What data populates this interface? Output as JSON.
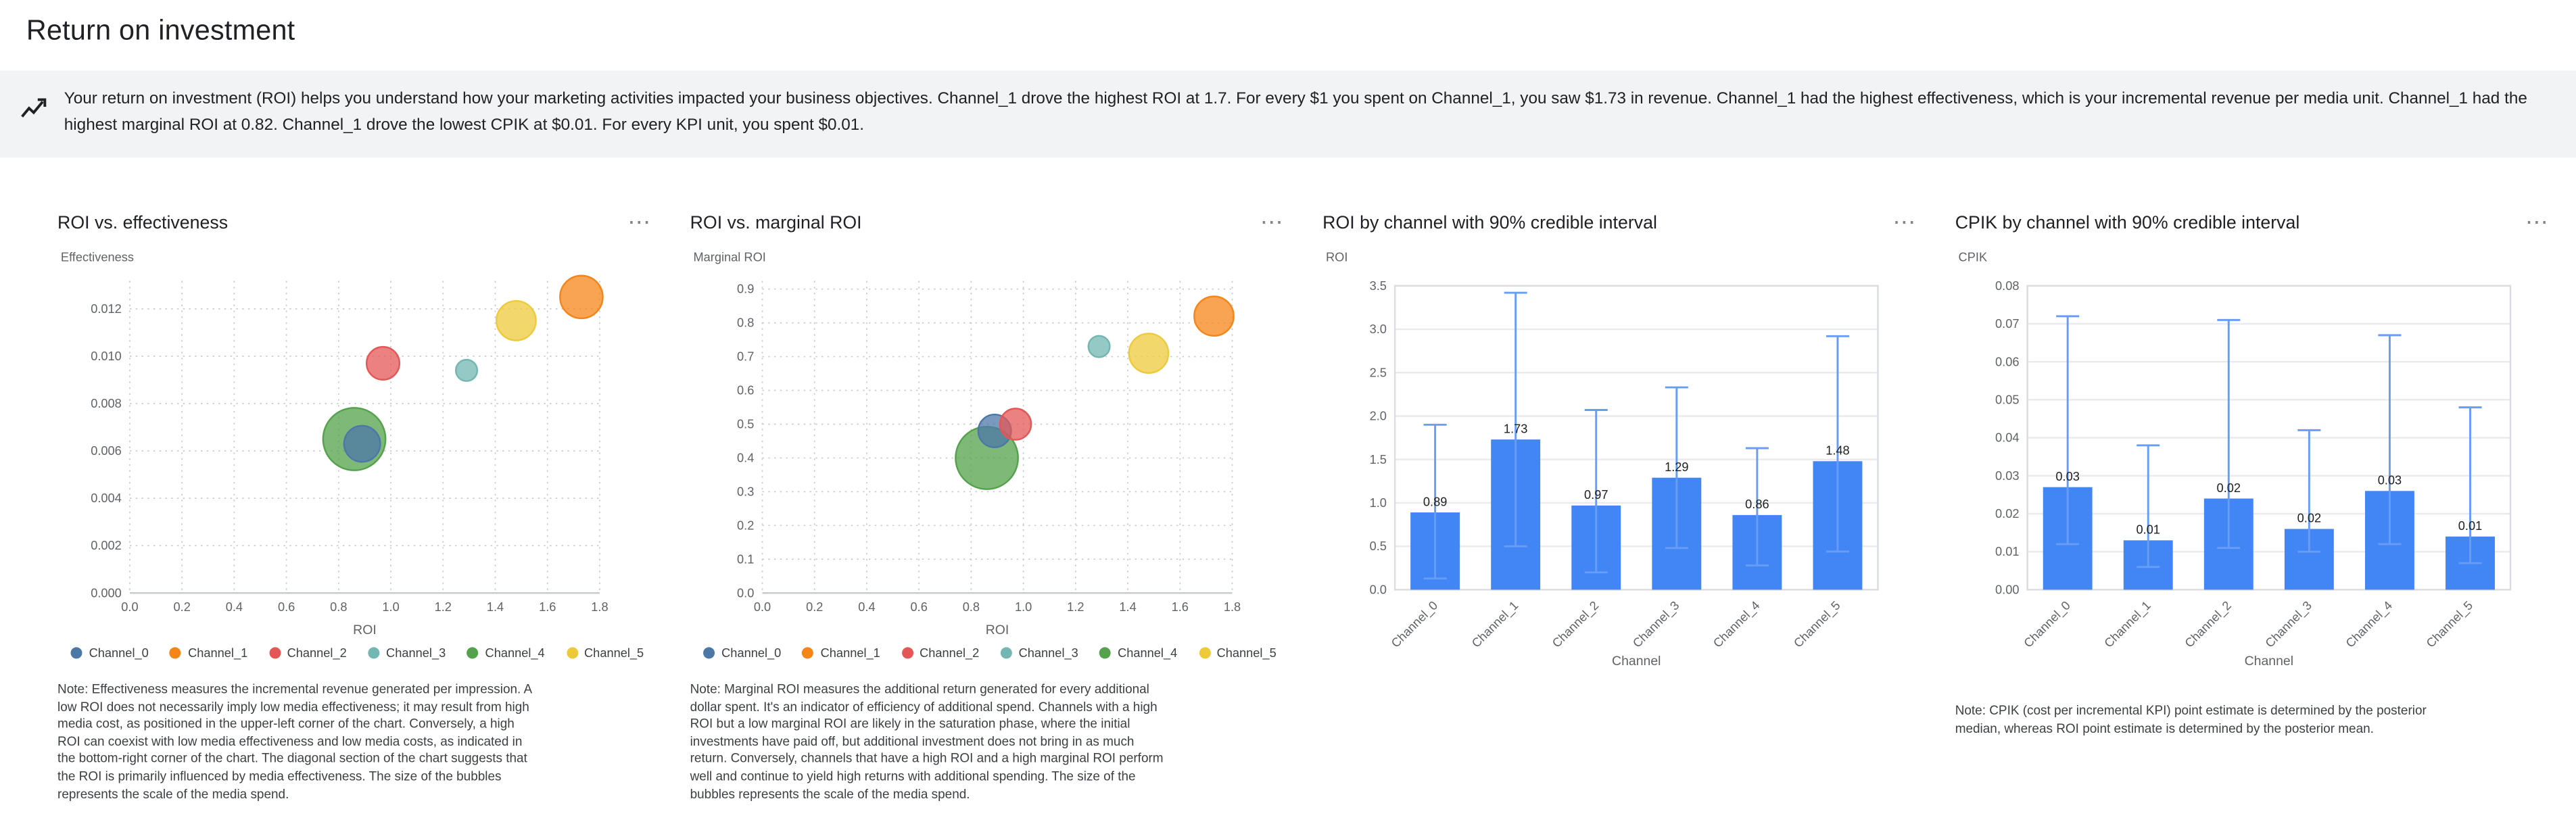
{
  "page": {
    "title": "Return on investment"
  },
  "insight_banner": {
    "text": "Your return on investment (ROI) helps you understand how your marketing activities impacted your business objectives. Channel_1 drove the highest ROI at 1.7. For every $1 you spent on Channel_1, you saw $1.73 in revenue. Channel_1 had the highest effectiveness, which is your incremental revenue per media unit. Channel_1 had the highest marginal ROI at 0.82. Channel_1 drove the lowest CPIK at $0.01. For every KPI unit, you spent $0.01."
  },
  "icons": {
    "more_options": "⋯",
    "insights": "insights-icon"
  },
  "colors": {
    "channel": {
      "Channel_0": "#4C78A8",
      "Channel_1": "#F58518",
      "Channel_2": "#E45756",
      "Channel_3": "#72B7B2",
      "Channel_4": "#54A24B",
      "Channel_5": "#EECA3B"
    },
    "bar": "#4285F4",
    "error_bar": "#669DF6",
    "banner_background": "#F1F3F4"
  },
  "chart_data": [
    {
      "id": "roi-vs-effectiveness",
      "type": "scatter",
      "title": "ROI vs. effectiveness",
      "xlabel": "ROI",
      "ylabel": "Effectiveness",
      "xlim": [
        0,
        1.8
      ],
      "x_tick_step": 0.2,
      "x_tick_decimals": 1,
      "ylim": [
        0,
        0.012
      ],
      "y_tick_step": 0.002,
      "y_tick_decimals": 3,
      "plot_top": 23,
      "grid": "dotted",
      "legend_position": "bottom",
      "series": [
        {
          "name": "Channel_0",
          "x": 0.89,
          "y": 0.0063,
          "size": 11
        },
        {
          "name": "Channel_1",
          "x": 1.73,
          "y": 0.0125,
          "size": 13
        },
        {
          "name": "Channel_2",
          "x": 0.97,
          "y": 0.0097,
          "size": 10
        },
        {
          "name": "Channel_3",
          "x": 1.29,
          "y": 0.0094,
          "size": 6.5
        },
        {
          "name": "Channel_4",
          "x": 0.86,
          "y": 0.0065,
          "size": 19
        },
        {
          "name": "Channel_5",
          "x": 1.48,
          "y": 0.0115,
          "size": 12
        }
      ],
      "legend": [
        "Channel_0",
        "Channel_1",
        "Channel_2",
        "Channel_3",
        "Channel_4",
        "Channel_5"
      ],
      "note": "Note: Effectiveness measures the incremental revenue generated per impression. A low ROI does not necessarily imply low media effectiveness; it may result from high media cost, as positioned in the upper-left corner of the chart. Conversely, a high ROI can coexist with low media effectiveness and low media costs, as indicated in the bottom-right corner of the chart. The diagonal section of the chart suggests that the ROI is primarily influenced by media effectiveness. The size of the bubbles represents the scale of the media spend."
    },
    {
      "id": "roi-vs-marginal-roi",
      "type": "scatter",
      "title": "ROI vs. marginal ROI",
      "xlabel": "ROI",
      "ylabel": "Marginal ROI",
      "xlim": [
        0,
        1.8
      ],
      "x_tick_step": 0.2,
      "x_tick_decimals": 1,
      "ylim": [
        0,
        0.9
      ],
      "y_tick_step": 0.1,
      "y_tick_decimals": 1,
      "plot_top": 11,
      "grid": "dotted",
      "legend_position": "bottom",
      "series": [
        {
          "name": "Channel_0",
          "x": 0.89,
          "y": 0.48,
          "size": 10
        },
        {
          "name": "Channel_1",
          "x": 1.73,
          "y": 0.82,
          "size": 12
        },
        {
          "name": "Channel_2",
          "x": 0.97,
          "y": 0.5,
          "size": 9.5
        },
        {
          "name": "Channel_3",
          "x": 1.29,
          "y": 0.73,
          "size": 6.5
        },
        {
          "name": "Channel_4",
          "x": 0.86,
          "y": 0.4,
          "size": 19
        },
        {
          "name": "Channel_5",
          "x": 1.48,
          "y": 0.71,
          "size": 12
        }
      ],
      "legend": [
        "Channel_0",
        "Channel_1",
        "Channel_2",
        "Channel_3",
        "Channel_4",
        "Channel_5"
      ],
      "note": "Note: Marginal ROI measures the additional return generated for every additional dollar spent. It's an indicator of efficiency of additional spend. Channels with a high ROI but a low marginal ROI are likely in the saturation phase, where the initial investments have paid off, but additional investment does not bring in as much return. Conversely, channels that have a high ROI and a high marginal ROI perform well and continue to yield high returns with additional spending. The size of the bubbles represents the scale of the media spend."
    },
    {
      "id": "roi-by-channel",
      "type": "bar",
      "title": "ROI by channel with 90% credible interval",
      "xlabel": "Channel",
      "ylabel": "ROI",
      "categories": [
        "Channel_0",
        "Channel_1",
        "Channel_2",
        "Channel_3",
        "Channel_4",
        "Channel_5"
      ],
      "values": [
        0.89,
        1.73,
        0.97,
        1.29,
        0.86,
        1.48
      ],
      "labels": [
        "0.89",
        "1.73",
        "0.97",
        "1.29",
        "0.86",
        "1.48"
      ],
      "ci_low": [
        0.13,
        0.5,
        0.2,
        0.48,
        0.28,
        0.44
      ],
      "ci_high": [
        1.9,
        3.42,
        2.07,
        2.33,
        1.63,
        2.92
      ],
      "ylim": [
        0,
        3.5
      ],
      "y_tick_step": 0.5,
      "y_tick_decimals": 1,
      "grid": "solid"
    },
    {
      "id": "cpik-by-channel",
      "type": "bar",
      "title": "CPIK by channel with 90% credible interval",
      "xlabel": "Channel",
      "ylabel": "CPIK",
      "categories": [
        "Channel_0",
        "Channel_1",
        "Channel_2",
        "Channel_3",
        "Channel_4",
        "Channel_5"
      ],
      "values": [
        0.027,
        0.013,
        0.024,
        0.016,
        0.026,
        0.014
      ],
      "labels": [
        "0.03",
        "0.01",
        "0.02",
        "0.02",
        "0.03",
        "0.01"
      ],
      "ci_low": [
        0.012,
        0.006,
        0.011,
        0.01,
        0.012,
        0.007
      ],
      "ci_high": [
        0.072,
        0.038,
        0.071,
        0.042,
        0.067,
        0.048
      ],
      "ylim": [
        0,
        0.08
      ],
      "y_tick_step": 0.01,
      "y_tick_decimals": 2,
      "grid": "solid",
      "note": "Note: CPIK (cost per incremental KPI) point estimate is determined by the posterior median, whereas ROI point estimate is determined by the posterior mean."
    }
  ]
}
